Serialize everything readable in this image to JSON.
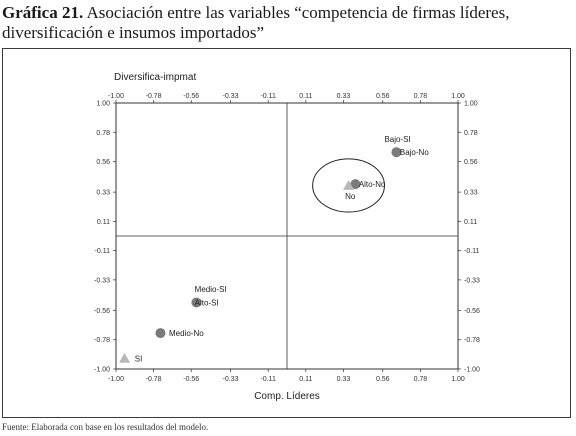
{
  "figure": {
    "title_lead": "Gráfica 21.",
    "title_rest": " Asociación entre las variables “competencia de firmas líderes, diversificación e insumos importados”",
    "source": "Fuente: Elaborada con base en los resultados del modelo."
  },
  "chart_data": {
    "type": "scatter",
    "title": "",
    "xlabel": "Comp. Líderes",
    "ylabel": "Diversifica-impmat",
    "xlim": [
      -1.0,
      1.0
    ],
    "ylim": [
      -1.0,
      1.0
    ],
    "tick_values": [
      -1.0,
      -0.78,
      -0.56,
      -0.33,
      -0.11,
      0.11,
      0.33,
      0.56,
      0.78,
      1.0
    ],
    "tick_labels": [
      "-1.00",
      "-0.78",
      "-0.56",
      "-0.33",
      "-0.11",
      "0.11",
      "0.33",
      "0.56",
      "0.78",
      "1.00"
    ],
    "grid": false,
    "series": [
      {
        "name": "",
        "marker": "circle",
        "color": "#7a7a7a",
        "points": [
          {
            "x": 0.64,
            "y": 0.63
          },
          {
            "x": 0.4,
            "y": 0.39
          },
          {
            "x": -0.53,
            "y": -0.5
          },
          {
            "x": -0.74,
            "y": -0.73
          }
        ]
      },
      {
        "name": "",
        "marker": "triangle",
        "color": "#b8b8b8",
        "points": [
          {
            "x": 0.36,
            "y": 0.38
          },
          {
            "x": -0.95,
            "y": -0.92
          }
        ]
      }
    ],
    "annotations": [
      {
        "text": "Bajo-SI",
        "x": 0.57,
        "y": 0.73
      },
      {
        "text": "Bajo-No",
        "x": 0.66,
        "y": 0.63
      },
      {
        "text": "Alto-No",
        "x": 0.42,
        "y": 0.39
      },
      {
        "text": "No",
        "x": 0.34,
        "y": 0.3
      },
      {
        "text": "Medio-SI",
        "x": -0.54,
        "y": -0.4
      },
      {
        "text": "Alto-SI",
        "x": -0.54,
        "y": -0.5
      },
      {
        "text": "Medio-No",
        "x": -0.69,
        "y": -0.73
      },
      {
        "text": "SI",
        "x": -0.89,
        "y": -0.92
      }
    ],
    "highlight": {
      "shape": "ellipse",
      "cx": 0.36,
      "cy": 0.38,
      "rx": 0.21,
      "ry": 0.2
    }
  }
}
